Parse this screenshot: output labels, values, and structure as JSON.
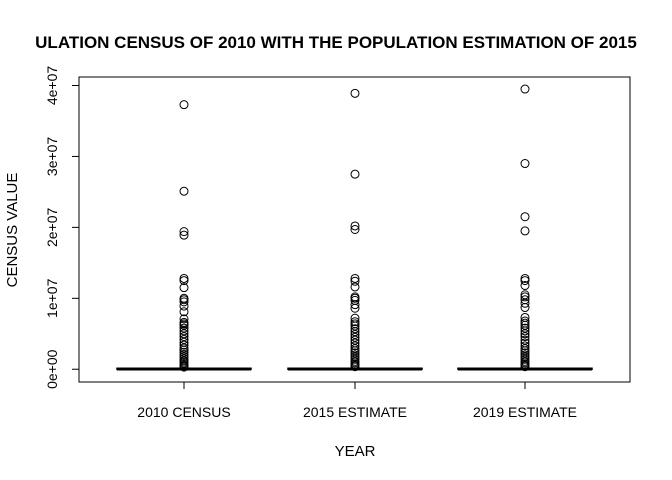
{
  "chart_data": {
    "type": "boxplot",
    "title": "ULATION CENSUS OF 2010 WITH THE POPULATION ESTIMATION OF 2015",
    "xlabel": "YEAR",
    "ylabel": "CENSUS VALUE",
    "ylim": [
      -1800000,
      41200000
    ],
    "grid": false,
    "y_ticks": [
      {
        "value": 0,
        "label": "0e+00"
      },
      {
        "value": 10000000,
        "label": "1e+07"
      },
      {
        "value": 20000000,
        "label": "2e+07"
      },
      {
        "value": 30000000,
        "label": "3e+07"
      },
      {
        "value": 40000000,
        "label": "4e+07"
      }
    ],
    "categories": [
      "2010 CENSUS",
      "2015 ESTIMATE",
      "2019 ESTIMATE"
    ],
    "series": [
      {
        "box": {
          "min": 0,
          "q1": 10000,
          "median": 25000,
          "q3": 60000,
          "max": 150000
        },
        "outliers": [
          37300000,
          25100000,
          19400000,
          18900000,
          12800000,
          12500000,
          11500000,
          10000000,
          9800000,
          9500000,
          8900000,
          8100000,
          7100000,
          6600000,
          6400000,
          6200000,
          5800000,
          5400000,
          5000000,
          4600000,
          4200000,
          3800000,
          3400000,
          3000000,
          2700000,
          2400000,
          2100000,
          1800000,
          1500000,
          1200000,
          1000000,
          800000,
          600000,
          450000,
          300000
        ]
      },
      {
        "box": {
          "min": 0,
          "q1": 10000,
          "median": 26000,
          "q3": 62000,
          "max": 155000
        },
        "outliers": [
          38900000,
          27500000,
          20200000,
          19700000,
          12800000,
          12400000,
          11600000,
          10200000,
          10000000,
          9700000,
          9100000,
          8600000,
          7200000,
          6700000,
          6400000,
          6100000,
          5700000,
          5300000,
          4900000,
          4500000,
          4100000,
          3700000,
          3300000,
          2900000,
          2600000,
          2300000,
          2000000,
          1700000,
          1400000,
          1100000,
          900000,
          700000,
          500000,
          350000
        ]
      },
      {
        "box": {
          "min": 0,
          "q1": 10000,
          "median": 27000,
          "q3": 64000,
          "max": 160000
        },
        "outliers": [
          39500000,
          29000000,
          21500000,
          19500000,
          12800000,
          12500000,
          11800000,
          10500000,
          10200000,
          9800000,
          9300000,
          8700000,
          7300000,
          6800000,
          6500000,
          6200000,
          5800000,
          5400000,
          5000000,
          4600000,
          4100000,
          3700000,
          3300000,
          2900000,
          2600000,
          2300000,
          2000000,
          1700000,
          1400000,
          1100000,
          900000,
          700000,
          500000,
          350000
        ]
      }
    ]
  }
}
